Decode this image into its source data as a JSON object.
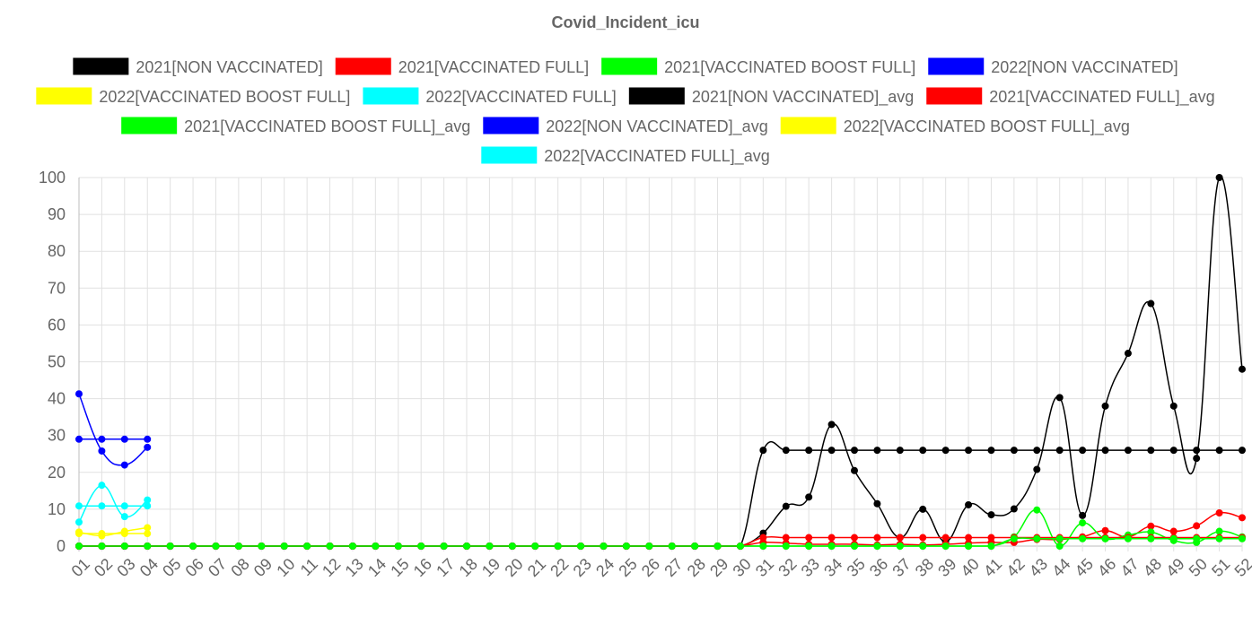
{
  "chart_data": {
    "type": "line",
    "title": "Covid_Incident_icu",
    "xlabel": "",
    "ylabel": "",
    "ylim": [
      0,
      100
    ],
    "yticks": [
      0,
      10,
      20,
      30,
      40,
      50,
      60,
      70,
      80,
      90,
      100
    ],
    "grid": true,
    "legend_position": "top",
    "categories": [
      "01",
      "02",
      "03",
      "04",
      "05",
      "06",
      "07",
      "08",
      "09",
      "10",
      "11",
      "12",
      "13",
      "14",
      "15",
      "16",
      "17",
      "18",
      "19",
      "20",
      "21",
      "22",
      "23",
      "24",
      "25",
      "26",
      "27",
      "28",
      "29",
      "30",
      "31",
      "32",
      "33",
      "34",
      "35",
      "36",
      "37",
      "38",
      "39",
      "40",
      "41",
      "42",
      "43",
      "44",
      "45",
      "46",
      "47",
      "48",
      "49",
      "50",
      "51",
      "52"
    ],
    "series": [
      {
        "name": "2021[NON VACCINATED]",
        "color": "#000000",
        "values": [
          0,
          0,
          0,
          0,
          0,
          0,
          0,
          0,
          0,
          0,
          0,
          0,
          0,
          0,
          0,
          0,
          0,
          0,
          0,
          0,
          0,
          0,
          0,
          0,
          0,
          0,
          0,
          0,
          0,
          0,
          3.5,
          10.8,
          13.3,
          33,
          20.5,
          11.5,
          2.3,
          10,
          1.2,
          11.2,
          8.5,
          10.1,
          20.8,
          40.3,
          8.3,
          38,
          52.3,
          65.8,
          38,
          23.8,
          100,
          48
        ]
      },
      {
        "name": "2021[VACCINATED FULL]",
        "color": "#ff0000",
        "values": [
          0,
          0,
          0,
          0,
          0,
          0,
          0,
          0,
          0,
          0,
          0,
          0,
          0,
          0,
          0,
          0,
          0,
          0,
          0,
          0,
          0,
          0,
          0,
          0,
          0,
          0,
          0,
          0,
          0,
          0,
          1,
          0.8,
          0.5,
          0.5,
          0.5,
          0.3,
          0.5,
          0.3,
          0.5,
          0.8,
          1,
          1,
          1.8,
          1.8,
          2.5,
          4.2,
          2.5,
          5.4,
          4,
          5.5,
          9,
          7.7
        ]
      },
      {
        "name": "2021[VACCINATED BOOST FULL]",
        "color": "#00ff00",
        "values": [
          0,
          0,
          0,
          0,
          0,
          0,
          0,
          0,
          0,
          0,
          0,
          0,
          0,
          0,
          0,
          0,
          0,
          0,
          0,
          0,
          0,
          0,
          0,
          0,
          0,
          0,
          0,
          0,
          0,
          0,
          0,
          0,
          0,
          0,
          0,
          0,
          0,
          0,
          0,
          0,
          0,
          2.5,
          9.8,
          0,
          6.3,
          2,
          3,
          3.8,
          1.5,
          1,
          4,
          2.5
        ]
      },
      {
        "name": "2022[NON VACCINATED]",
        "color": "#0000ff",
        "values": [
          41.3,
          25.8,
          22,
          26.8,
          null,
          null,
          null,
          null,
          null,
          null,
          null,
          null,
          null,
          null,
          null,
          null,
          null,
          null,
          null,
          null,
          null,
          null,
          null,
          null,
          null,
          null,
          null,
          null,
          null,
          null,
          null,
          null,
          null,
          null,
          null,
          null,
          null,
          null,
          null,
          null,
          null,
          null,
          null,
          null,
          null,
          null,
          null,
          null,
          null,
          null,
          null,
          null
        ]
      },
      {
        "name": "2022[VACCINATED BOOST FULL]",
        "color": "#ffff00",
        "values": [
          3.8,
          2.8,
          4,
          5,
          null,
          null,
          null,
          null,
          null,
          null,
          null,
          null,
          null,
          null,
          null,
          null,
          null,
          null,
          null,
          null,
          null,
          null,
          null,
          null,
          null,
          null,
          null,
          null,
          null,
          null,
          null,
          null,
          null,
          null,
          null,
          null,
          null,
          null,
          null,
          null,
          null,
          null,
          null,
          null,
          null,
          null,
          null,
          null,
          null,
          null,
          null,
          null
        ]
      },
      {
        "name": "2022[VACCINATED FULL]",
        "color": "#00ffff",
        "values": [
          6.5,
          16.5,
          8,
          12.5,
          null,
          null,
          null,
          null,
          null,
          null,
          null,
          null,
          null,
          null,
          null,
          null,
          null,
          null,
          null,
          null,
          null,
          null,
          null,
          null,
          null,
          null,
          null,
          null,
          null,
          null,
          null,
          null,
          null,
          null,
          null,
          null,
          null,
          null,
          null,
          null,
          null,
          null,
          null,
          null,
          null,
          null,
          null,
          null,
          null,
          null,
          null,
          null
        ]
      },
      {
        "name": "2021[NON VACCINATED]_avg",
        "color": "#000000",
        "values": [
          0,
          0,
          0,
          0,
          0,
          0,
          0,
          0,
          0,
          0,
          0,
          0,
          0,
          0,
          0,
          0,
          0,
          0,
          0,
          0,
          0,
          0,
          0,
          0,
          0,
          0,
          0,
          0,
          0,
          0,
          26,
          26,
          26,
          26,
          26,
          26,
          26,
          26,
          26,
          26,
          26,
          26,
          26,
          26,
          26,
          26,
          26,
          26,
          26,
          26,
          26,
          26
        ]
      },
      {
        "name": "2021[VACCINATED FULL]_avg",
        "color": "#ff0000",
        "values": [
          0,
          0,
          0,
          0,
          0,
          0,
          0,
          0,
          0,
          0,
          0,
          0,
          0,
          0,
          0,
          0,
          0,
          0,
          0,
          0,
          0,
          0,
          0,
          0,
          0,
          0,
          0,
          0,
          0,
          0,
          2.3,
          2.3,
          2.3,
          2.3,
          2.3,
          2.3,
          2.3,
          2.3,
          2.3,
          2.3,
          2.3,
          2.3,
          2.3,
          2.3,
          2.3,
          2.3,
          2.3,
          2.3,
          2.3,
          2.3,
          2.3,
          2.3
        ]
      },
      {
        "name": "2021[VACCINATED BOOST FULL]_avg",
        "color": "#00ff00",
        "values": [
          0,
          0,
          0,
          0,
          0,
          0,
          0,
          0,
          0,
          0,
          0,
          0,
          0,
          0,
          0,
          0,
          0,
          0,
          0,
          0,
          0,
          0,
          0,
          0,
          0,
          0,
          0,
          0,
          0,
          0,
          0,
          0,
          0,
          0,
          0,
          0,
          0,
          0,
          0,
          0,
          0,
          2,
          2,
          2,
          2,
          2,
          2,
          2,
          2,
          2,
          2,
          2
        ]
      },
      {
        "name": "2022[NON VACCINATED]_avg",
        "color": "#0000ff",
        "values": [
          29,
          29,
          29,
          29,
          null,
          null,
          null,
          null,
          null,
          null,
          null,
          null,
          null,
          null,
          null,
          null,
          null,
          null,
          null,
          null,
          null,
          null,
          null,
          null,
          null,
          null,
          null,
          null,
          null,
          null,
          null,
          null,
          null,
          null,
          null,
          null,
          null,
          null,
          null,
          null,
          null,
          null,
          null,
          null,
          null,
          null,
          null,
          null,
          null,
          null,
          null,
          null
        ]
      },
      {
        "name": "2022[VACCINATED BOOST FULL]_avg",
        "color": "#ffff00",
        "values": [
          3.4,
          3.4,
          3.4,
          3.4,
          null,
          null,
          null,
          null,
          null,
          null,
          null,
          null,
          null,
          null,
          null,
          null,
          null,
          null,
          null,
          null,
          null,
          null,
          null,
          null,
          null,
          null,
          null,
          null,
          null,
          null,
          null,
          null,
          null,
          null,
          null,
          null,
          null,
          null,
          null,
          null,
          null,
          null,
          null,
          null,
          null,
          null,
          null,
          null,
          null,
          null,
          null,
          null
        ]
      },
      {
        "name": "2022[VACCINATED FULL]_avg",
        "color": "#00ffff",
        "values": [
          10.9,
          10.9,
          10.9,
          10.9,
          null,
          null,
          null,
          null,
          null,
          null,
          null,
          null,
          null,
          null,
          null,
          null,
          null,
          null,
          null,
          null,
          null,
          null,
          null,
          null,
          null,
          null,
          null,
          null,
          null,
          null,
          null,
          null,
          null,
          null,
          null,
          null,
          null,
          null,
          null,
          null,
          null,
          null,
          null,
          null,
          null,
          null,
          null,
          null,
          null,
          null,
          null,
          null
        ]
      }
    ]
  }
}
